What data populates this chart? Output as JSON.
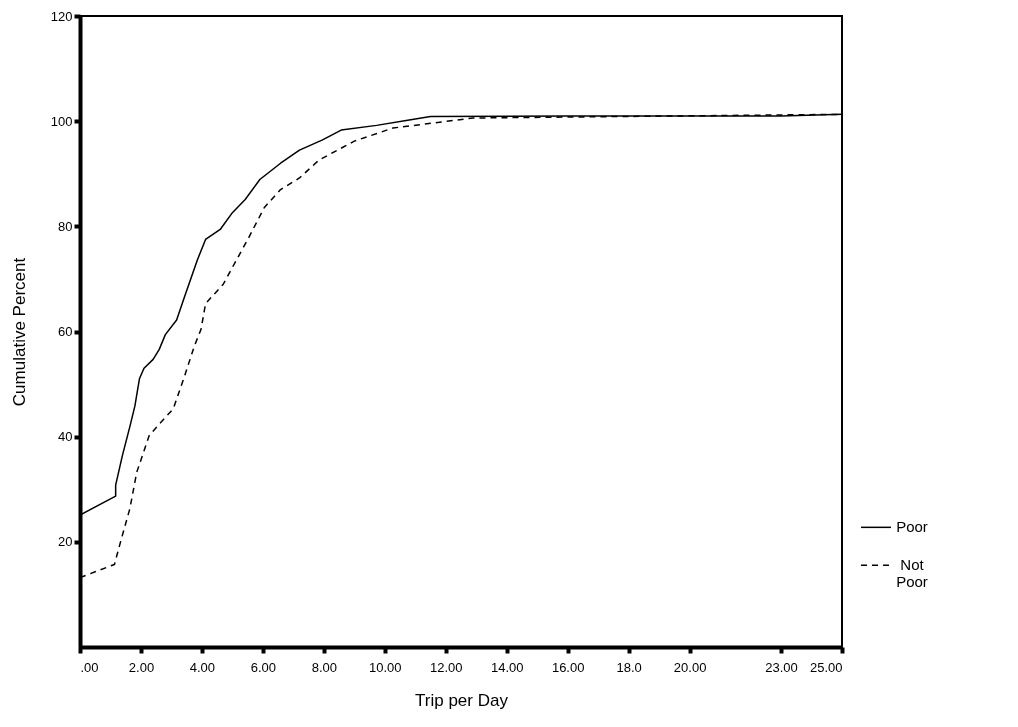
{
  "chart_data": {
    "type": "line",
    "xlabel": "Trip per Day",
    "ylabel": "Cumulative Percent",
    "xlim": [
      0,
      25
    ],
    "xticks": [
      {
        "value": 0,
        "label": ".00"
      },
      {
        "value": 2,
        "label": "2.00"
      },
      {
        "value": 4,
        "label": "4.00"
      },
      {
        "value": 6,
        "label": "6.00"
      },
      {
        "value": 8,
        "label": "8.00"
      },
      {
        "value": 10,
        "label": "10.00"
      },
      {
        "value": 12,
        "label": "12.00"
      },
      {
        "value": 14,
        "label": "14.00"
      },
      {
        "value": 16,
        "label": "16.00"
      },
      {
        "value": 18,
        "label": "18.0"
      },
      {
        "value": 20,
        "label": "20.00"
      },
      {
        "value": 23,
        "label": "23.00"
      },
      {
        "value": 25,
        "label": "25.00"
      }
    ],
    "ylim": [
      0,
      120
    ],
    "yticks": [
      20,
      40,
      60,
      80,
      100,
      120
    ],
    "grid": false,
    "legend": "right",
    "marker": "none",
    "series": [
      {
        "name": "Poor",
        "color": "#000000",
        "line_style": "solid",
        "x": [
          0,
          1.17,
          1.17,
          1.39,
          1.64,
          1.8,
          1.95,
          2.1,
          2.4,
          2.6,
          2.8,
          3.17,
          3.43,
          3.85,
          4.12,
          4.6,
          5.0,
          5.42,
          5.9,
          6.58,
          7.2,
          7.94,
          8.57,
          9.73,
          10.8,
          11.5,
          16,
          23,
          25
        ],
        "values": [
          25.1,
          28.7,
          30.8,
          36.4,
          42,
          45.8,
          51,
          53,
          54.7,
          56.6,
          59.4,
          62.2,
          66.6,
          73.6,
          77.5,
          79.4,
          82.6,
          85.1,
          88.9,
          92,
          94.5,
          96.4,
          98.3,
          99.2,
          100.2,
          100.9,
          101,
          101,
          101.3
        ]
      },
      {
        "name": "Not Poor",
        "color": "#000000",
        "line_style": "dashed",
        "x": [
          0,
          1.13,
          1.33,
          1.64,
          1.86,
          2.27,
          2.6,
          3.06,
          3.43,
          3.75,
          3.97,
          4.12,
          4.7,
          5.54,
          6.05,
          6.58,
          7.2,
          7.84,
          9.0,
          10.27,
          12.9,
          18,
          25
        ],
        "values": [
          13.2,
          15.7,
          20,
          26.4,
          33.2,
          40.2,
          42.4,
          45.3,
          51.5,
          57.2,
          60.4,
          65.3,
          69,
          77.9,
          83.6,
          87,
          89.2,
          92.6,
          96.2,
          98.7,
          100.6,
          100.9,
          101.3
        ]
      }
    ]
  }
}
